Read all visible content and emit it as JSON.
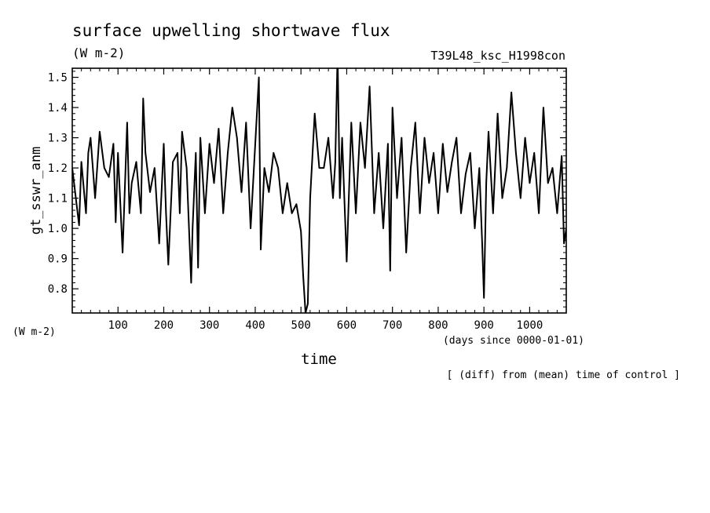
{
  "chart_data": {
    "type": "line",
    "title": "surface upwelling shortwave flux",
    "units": "(W m-2)",
    "run_label": "T39L48_ksc_H1998con",
    "ylabel": "gt_sswr_anm",
    "ylabel_units": "(W m-2)",
    "xlabel": "time",
    "xlabel_units": "(days since 0000-01-01)",
    "footnote": "[ (diff) from (mean) time of control ]",
    "xlim": [
      0,
      1080
    ],
    "ylim": [
      0.72,
      1.53
    ],
    "x_ticks": [
      100,
      200,
      300,
      400,
      500,
      600,
      700,
      800,
      900,
      1000
    ],
    "x_tick_labels": [
      "100",
      "200",
      "300",
      "400",
      "500",
      "600",
      "700",
      "800",
      "900",
      "1000"
    ],
    "y_ticks": [
      0.8,
      0.9,
      1.0,
      1.1,
      1.2,
      1.3,
      1.4,
      1.5
    ],
    "y_tick_labels": [
      "0.8",
      "0.9",
      "1.0",
      "1.1",
      "1.2",
      "1.3",
      "1.4",
      "1.5"
    ],
    "series": [
      {
        "color": "#000000",
        "x": [
          0,
          15,
          20,
          30,
          35,
          40,
          50,
          60,
          70,
          80,
          90,
          95,
          100,
          110,
          120,
          125,
          130,
          140,
          150,
          155,
          160,
          170,
          180,
          190,
          200,
          205,
          210,
          220,
          230,
          235,
          240,
          250,
          260,
          263,
          270,
          275,
          280,
          290,
          300,
          310,
          320,
          330,
          340,
          350,
          360,
          370,
          380,
          390,
          400,
          408,
          412,
          420,
          430,
          440,
          450,
          460,
          470,
          480,
          490,
          500,
          505,
          510,
          515,
          520,
          530,
          540,
          550,
          560,
          570,
          575,
          580,
          585,
          590,
          600,
          610,
          620,
          630,
          640,
          650,
          660,
          670,
          680,
          690,
          695,
          700,
          710,
          720,
          730,
          740,
          750,
          760,
          770,
          780,
          790,
          800,
          810,
          820,
          830,
          840,
          850,
          860,
          870,
          880,
          890,
          896,
          900,
          905,
          910,
          920,
          930,
          940,
          950,
          960,
          970,
          980,
          990,
          1000,
          1010,
          1020,
          1030,
          1040,
          1050,
          1060,
          1070,
          1075,
          1080
        ],
        "y": [
          1.2,
          1.01,
          1.22,
          1.05,
          1.25,
          1.3,
          1.1,
          1.32,
          1.2,
          1.17,
          1.28,
          1.02,
          1.25,
          0.92,
          1.35,
          1.05,
          1.15,
          1.22,
          1.05,
          1.43,
          1.25,
          1.12,
          1.2,
          0.95,
          1.28,
          1.05,
          0.88,
          1.22,
          1.25,
          1.05,
          1.32,
          1.2,
          0.82,
          1.0,
          1.25,
          0.87,
          1.3,
          1.05,
          1.28,
          1.15,
          1.33,
          1.05,
          1.25,
          1.4,
          1.3,
          1.12,
          1.35,
          1.0,
          1.28,
          1.5,
          0.93,
          1.2,
          1.12,
          1.25,
          1.2,
          1.05,
          1.15,
          1.05,
          1.08,
          0.99,
          0.84,
          0.72,
          0.75,
          1.1,
          1.38,
          1.2,
          1.2,
          1.3,
          1.1,
          1.22,
          1.58,
          1.1,
          1.3,
          0.89,
          1.35,
          1.05,
          1.35,
          1.2,
          1.47,
          1.05,
          1.25,
          1.0,
          1.28,
          0.86,
          1.4,
          1.1,
          1.3,
          0.92,
          1.2,
          1.35,
          1.05,
          1.3,
          1.15,
          1.25,
          1.05,
          1.28,
          1.12,
          1.22,
          1.3,
          1.05,
          1.18,
          1.25,
          1.0,
          1.2,
          0.96,
          0.77,
          1.15,
          1.32,
          1.05,
          1.38,
          1.1,
          1.2,
          1.45,
          1.25,
          1.1,
          1.3,
          1.15,
          1.25,
          1.05,
          1.4,
          1.15,
          1.2,
          1.05,
          1.24,
          0.95,
          1.0
        ]
      }
    ]
  }
}
